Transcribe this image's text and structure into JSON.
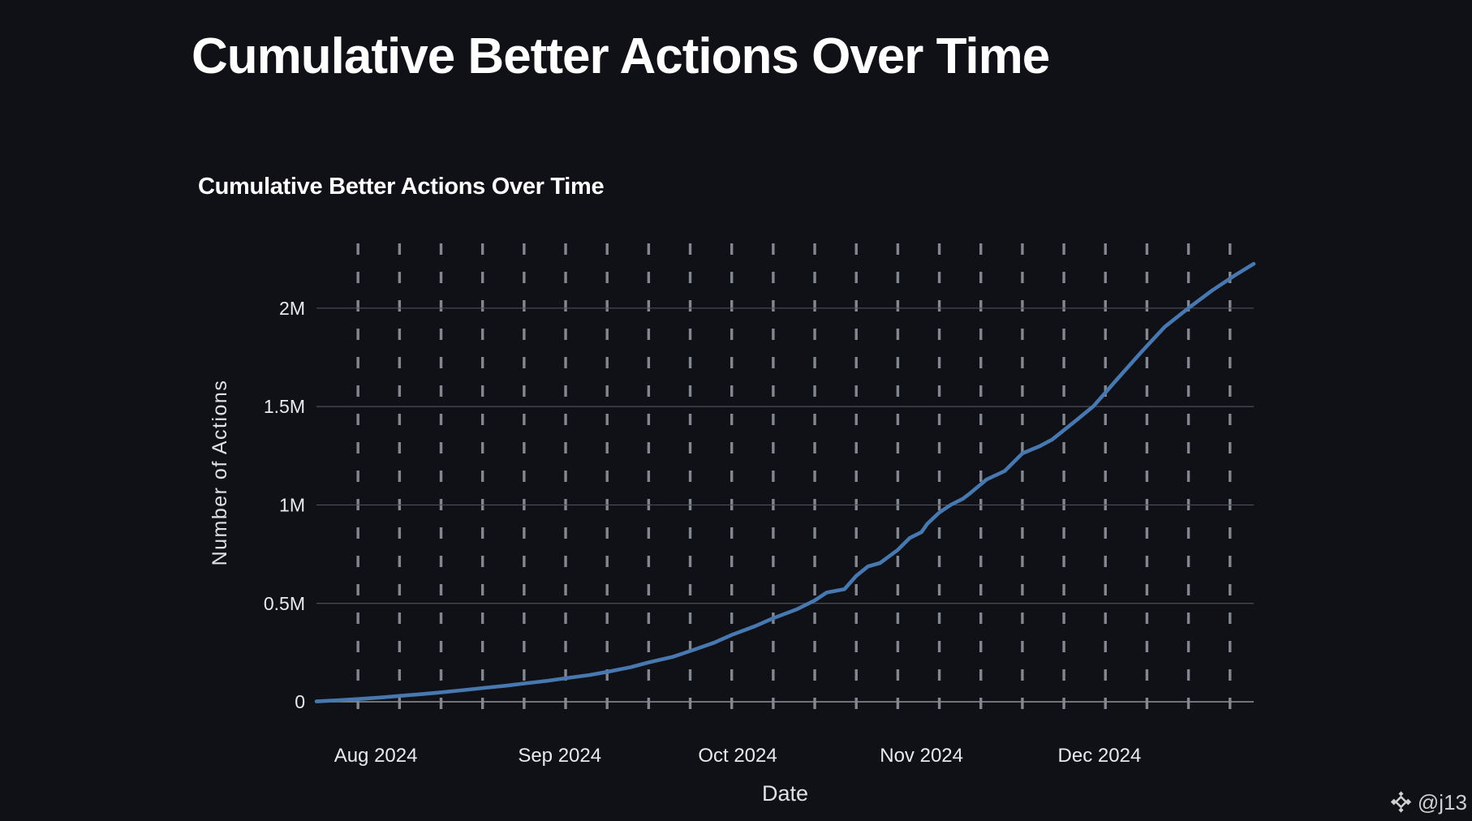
{
  "page": {
    "title": "Cumulative Better Actions Over Time",
    "watermark": {
      "handle": "@j13",
      "icon": "binance-diamond-logo"
    }
  },
  "colors": {
    "background": "#0f1117",
    "page_title": "#ffffff",
    "chart_title": "#ffffff",
    "tick_label": "#e9eaec",
    "axis_title": "#dfe1e4",
    "grid_horizontal": "#4c4f55",
    "grid_zero_line": "#87898e",
    "grid_vertical_dash": "#84878d",
    "series_line": "#4878b0",
    "watermark": "#cfcfcf"
  },
  "chart_data": {
    "type": "line",
    "title": "Cumulative Better Actions Over Time",
    "xlabel": "Date",
    "ylabel": "Number of Actions",
    "legend": "none",
    "grid": {
      "horizontal": "solid",
      "vertical": "dashed",
      "vline_interval_days": 7,
      "vline_start": "2024-07-29",
      "vline_end": "2024-12-23"
    },
    "x_range": [
      "2024-07-22",
      "2024-12-27"
    ],
    "ylim": [
      -111000,
      2329000
    ],
    "y_ticks": [
      {
        "value": 0,
        "label": "0"
      },
      {
        "value": 500000,
        "label": "0.5M"
      },
      {
        "value": 1000000,
        "label": "1M"
      },
      {
        "value": 1500000,
        "label": "1.5M"
      },
      {
        "value": 2000000,
        "label": "2M"
      }
    ],
    "x_ticks": [
      {
        "date": "2024-08-01",
        "label": "Aug 2024"
      },
      {
        "date": "2024-09-01",
        "label": "Sep 2024"
      },
      {
        "date": "2024-10-01",
        "label": "Oct 2024"
      },
      {
        "date": "2024-11-01",
        "label": "Nov 2024"
      },
      {
        "date": "2024-12-01",
        "label": "Dec 2024"
      }
    ],
    "series": [
      {
        "name": "Cumulative Better Actions",
        "color": "#4878b0",
        "points": [
          {
            "date": "2024-07-22",
            "value": 2000
          },
          {
            "date": "2024-07-26",
            "value": 8000
          },
          {
            "date": "2024-07-29",
            "value": 14000
          },
          {
            "date": "2024-08-02",
            "value": 22000
          },
          {
            "date": "2024-08-05",
            "value": 30000
          },
          {
            "date": "2024-08-09",
            "value": 40000
          },
          {
            "date": "2024-08-12",
            "value": 48000
          },
          {
            "date": "2024-08-16",
            "value": 60000
          },
          {
            "date": "2024-08-19",
            "value": 70000
          },
          {
            "date": "2024-08-23",
            "value": 82000
          },
          {
            "date": "2024-08-26",
            "value": 93000
          },
          {
            "date": "2024-08-30",
            "value": 107000
          },
          {
            "date": "2024-09-02",
            "value": 120000
          },
          {
            "date": "2024-09-06",
            "value": 136000
          },
          {
            "date": "2024-09-09",
            "value": 152000
          },
          {
            "date": "2024-09-13",
            "value": 176000
          },
          {
            "date": "2024-09-16",
            "value": 200000
          },
          {
            "date": "2024-09-20",
            "value": 228000
          },
          {
            "date": "2024-09-23",
            "value": 258000
          },
          {
            "date": "2024-09-27",
            "value": 300000
          },
          {
            "date": "2024-09-30",
            "value": 340000
          },
          {
            "date": "2024-10-04",
            "value": 385000
          },
          {
            "date": "2024-10-07",
            "value": 425000
          },
          {
            "date": "2024-10-11",
            "value": 470000
          },
          {
            "date": "2024-10-14",
            "value": 515000
          },
          {
            "date": "2024-10-16",
            "value": 555000
          },
          {
            "date": "2024-10-19",
            "value": 572000
          },
          {
            "date": "2024-10-21",
            "value": 640000
          },
          {
            "date": "2024-10-23",
            "value": 688000
          },
          {
            "date": "2024-10-25",
            "value": 705000
          },
          {
            "date": "2024-10-28",
            "value": 772000
          },
          {
            "date": "2024-10-30",
            "value": 832000
          },
          {
            "date": "2024-11-01",
            "value": 862000
          },
          {
            "date": "2024-11-02",
            "value": 905000
          },
          {
            "date": "2024-11-04",
            "value": 962000
          },
          {
            "date": "2024-11-06",
            "value": 1002000
          },
          {
            "date": "2024-11-08",
            "value": 1032000
          },
          {
            "date": "2024-11-09",
            "value": 1055000
          },
          {
            "date": "2024-11-12",
            "value": 1130000
          },
          {
            "date": "2024-11-15",
            "value": 1172000
          },
          {
            "date": "2024-11-18",
            "value": 1262000
          },
          {
            "date": "2024-11-21",
            "value": 1300000
          },
          {
            "date": "2024-11-23",
            "value": 1332000
          },
          {
            "date": "2024-11-27",
            "value": 1428000
          },
          {
            "date": "2024-11-30",
            "value": 1502000
          },
          {
            "date": "2024-12-04",
            "value": 1640000
          },
          {
            "date": "2024-12-08",
            "value": 1775000
          },
          {
            "date": "2024-12-12",
            "value": 1905000
          },
          {
            "date": "2024-12-16",
            "value": 2000000
          },
          {
            "date": "2024-12-20",
            "value": 2090000
          },
          {
            "date": "2024-12-24",
            "value": 2170000
          },
          {
            "date": "2024-12-27",
            "value": 2225000
          }
        ]
      }
    ]
  }
}
